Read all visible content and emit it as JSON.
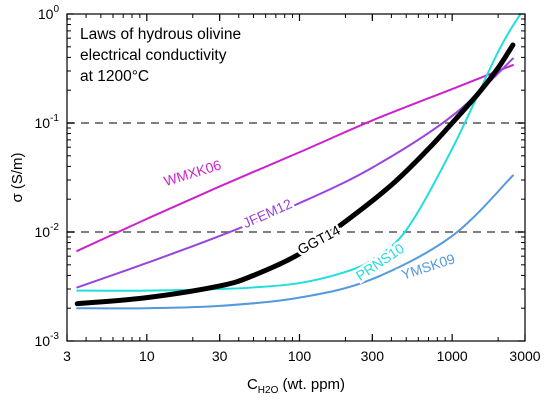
{
  "chart_data": {
    "type": "line",
    "title_lines": [
      "Laws of hydrous olivine",
      "electrical conductivity",
      "at 1200°C"
    ],
    "xlabel": {
      "prefix": "C",
      "subscript": "H2O",
      "suffix": " (wt. ppm)"
    },
    "ylabel": "σ (S/m)",
    "x_scale": "log",
    "y_scale": "log",
    "xlim": [
      3,
      3000
    ],
    "ylim": [
      0.001,
      1
    ],
    "x_ticks": [
      {
        "value": 3,
        "label": "3"
      },
      {
        "value": 10,
        "label": "10"
      },
      {
        "value": 30,
        "label": "30"
      },
      {
        "value": 100,
        "label": "100"
      },
      {
        "value": 300,
        "label": "300"
      },
      {
        "value": 1000,
        "label": "1000"
      },
      {
        "value": 3000,
        "label": "3000"
      }
    ],
    "y_ticks": [
      {
        "value": 0.001,
        "base": "10",
        "exp": "-3"
      },
      {
        "value": 0.01,
        "base": "10",
        "exp": "-2"
      },
      {
        "value": 0.1,
        "base": "10",
        "exp": "-1"
      },
      {
        "value": 1,
        "base": "10",
        "exp": "0"
      }
    ],
    "reference_lines": [
      {
        "y": 0.1,
        "style": "dashed",
        "color": "#555555"
      },
      {
        "y": 0.01,
        "style": "dashed",
        "color": "#555555"
      }
    ],
    "series": [
      {
        "name": "WMXK06",
        "color": "#cc22cc",
        "width": 2,
        "x": [
          3.5,
          10,
          30,
          100,
          300,
          1000,
          2500
        ],
        "y": [
          0.0067,
          0.0132,
          0.0262,
          0.0539,
          0.1056,
          0.205,
          0.34
        ],
        "label_at": {
          "x": 20,
          "y": 0.034,
          "angle": -17
        }
      },
      {
        "name": "JFEM12",
        "color": "#9944dd",
        "width": 2,
        "x": [
          3.5,
          10,
          30,
          100,
          300,
          1000,
          2500
        ],
        "y": [
          0.0031,
          0.0052,
          0.0092,
          0.0184,
          0.039,
          0.116,
          0.39
        ],
        "label_at": {
          "x": 62,
          "y": 0.0145,
          "angle": -24
        }
      },
      {
        "name": "PRNS10",
        "color": "#22dddd",
        "width": 2,
        "x": [
          3.5,
          10,
          30,
          50,
          100,
          200,
          300,
          500,
          1000,
          2000,
          2800
        ],
        "y": [
          0.0029,
          0.0029,
          0.003,
          0.0031,
          0.0034,
          0.0043,
          0.0056,
          0.0104,
          0.058,
          0.45,
          1.0
        ],
        "label_at": {
          "x": 340,
          "y": 0.0052,
          "angle": -34
        }
      },
      {
        "name": "YMSK09",
        "color": "#5599dd",
        "width": 2,
        "x": [
          3.5,
          10,
          30,
          100,
          300,
          1000,
          2500
        ],
        "y": [
          0.002,
          0.002,
          0.0021,
          0.0025,
          0.0037,
          0.0092,
          0.033
        ],
        "label_at": {
          "x": 700,
          "y": 0.0047,
          "angle": -18
        }
      },
      {
        "name": "GGT14",
        "color": "#000000",
        "width": 5,
        "x": [
          3.5,
          10,
          30,
          50,
          100,
          200,
          400,
          700,
          1000,
          1500,
          2000,
          2500
        ],
        "y": [
          0.0022,
          0.0025,
          0.0032,
          0.004,
          0.0063,
          0.0125,
          0.027,
          0.058,
          0.1,
          0.19,
          0.32,
          0.52
        ],
        "label_at": {
          "x": 135,
          "y": 0.0083,
          "angle": -28
        }
      }
    ],
    "grid": false,
    "legend": "none"
  }
}
